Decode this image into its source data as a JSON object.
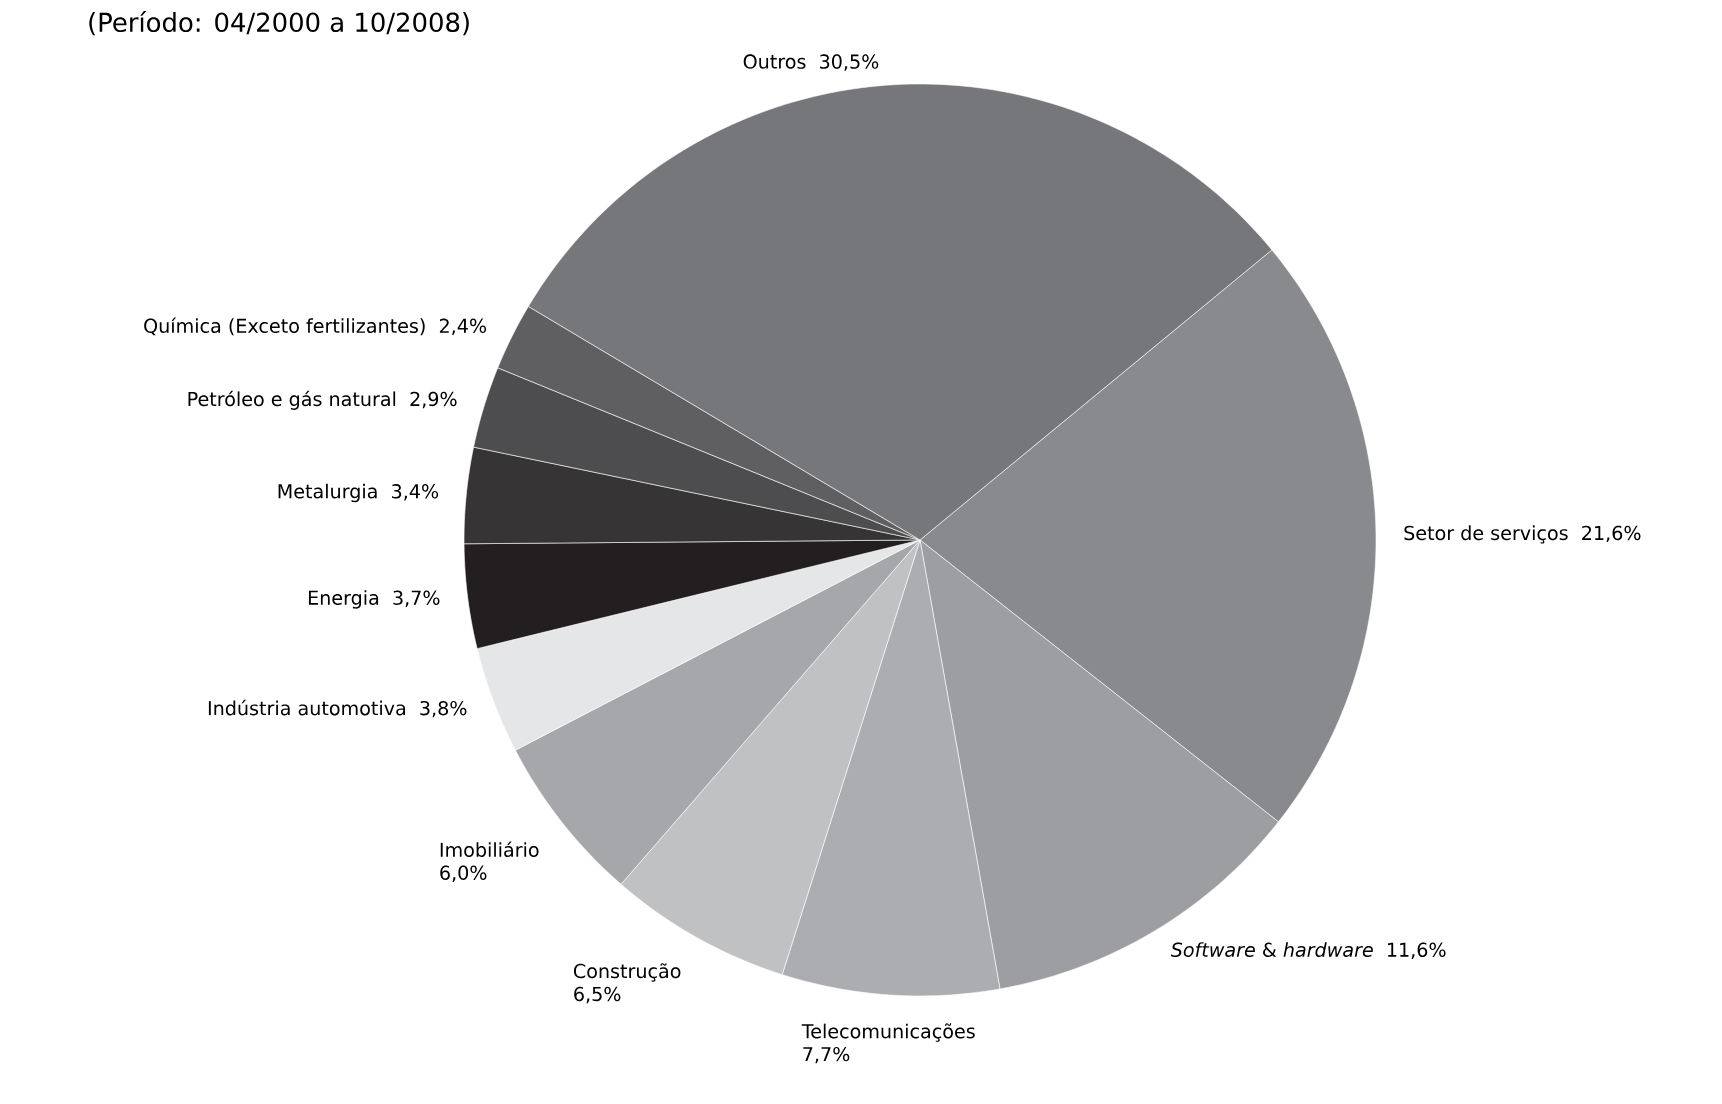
{
  "chart_data": {
    "type": "pie",
    "subtitle": "(Período: 04/2000 a 10/2008)",
    "categories": [
      "Setor de serviços",
      "*Software* & *hardware*",
      "Telecomunicações",
      "Construção",
      "Imobiliário",
      "Indústria automotiva",
      "Energia",
      "Metalurgia",
      "Petróleo e gás natural",
      "Química (Exceto fertilizantes)",
      "Outros"
    ],
    "values": [
      21.6,
      11.6,
      7.7,
      6.5,
      6.0,
      3.8,
      3.7,
      3.4,
      2.9,
      2.4,
      30.5
    ],
    "value_labels": [
      "21,6%",
      "11,6%",
      "7,7%",
      "6,5%",
      "6,0%",
      "3,8%",
      "3,7%",
      "3,4%",
      "2,9%",
      "2,4%",
      "30,5%"
    ],
    "colors": [
      "#898a8e",
      "#9d9ea1",
      "#acadb0",
      "#c0c1c3",
      "#a6a7aa",
      "#e5e6e7",
      "#231f20",
      "#363435",
      "#4d4c4e",
      "#5f5f62",
      "#76777b"
    ]
  }
}
